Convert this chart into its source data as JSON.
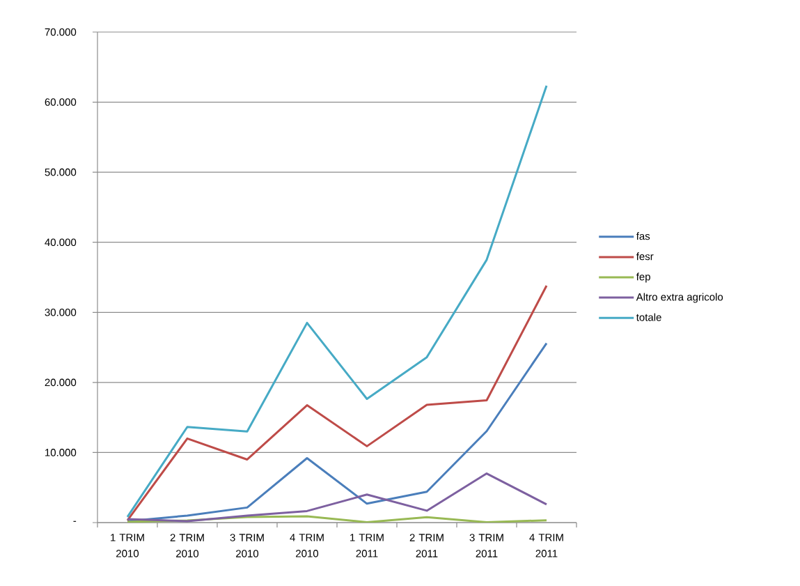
{
  "chart_data": {
    "type": "line",
    "categories": [
      "1 TRIM 2010",
      "2 TRIM 2010",
      "3 TRIM 2010",
      "4 TRIM 2010",
      "1 TRIM 2011",
      "2 TRIM 2011",
      "3 TRIM 2011",
      "4 TRIM 2011"
    ],
    "series": [
      {
        "name": "fas",
        "color": "#4a7ebb",
        "values": [
          200,
          1000,
          2150,
          9200,
          2700,
          4400,
          13050,
          25600
        ]
      },
      {
        "name": "fesr",
        "color": "#be4b48",
        "values": [
          300,
          12000,
          9000,
          16750,
          10900,
          16800,
          17450,
          33800
        ]
      },
      {
        "name": "fep",
        "color": "#98b954",
        "values": [
          100,
          300,
          800,
          900,
          50,
          770,
          50,
          330
        ]
      },
      {
        "name": "Altro extra agricolo",
        "color": "#7d60a0",
        "values": [
          500,
          200,
          1000,
          1650,
          4000,
          1700,
          7000,
          2600
        ]
      },
      {
        "name": "totale",
        "color": "#46aac5",
        "values": [
          800,
          13650,
          13000,
          28500,
          17650,
          23600,
          37500,
          62350
        ]
      }
    ],
    "ylim": [
      0,
      70000
    ],
    "yticks": [
      {
        "value": 0,
        "label": "-"
      },
      {
        "value": 10000,
        "label": "10.000"
      },
      {
        "value": 20000,
        "label": "20.000"
      },
      {
        "value": 30000,
        "label": "30.000"
      },
      {
        "value": 40000,
        "label": "40.000"
      },
      {
        "value": 50000,
        "label": "50.000"
      },
      {
        "value": 60000,
        "label": "60.000"
      },
      {
        "value": 70000,
        "label": "70.000"
      }
    ],
    "grid": "y",
    "legend": "right",
    "marker": "none",
    "line_style": "solid"
  }
}
